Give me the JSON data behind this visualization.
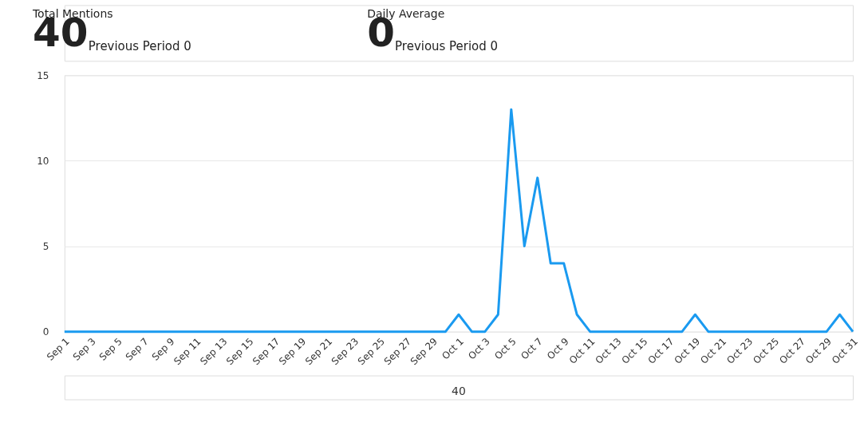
{
  "chart_data": {
    "type": "line",
    "annotations": [
      "Total Mentions",
      "40",
      "Previous Period 0",
      "Daily Average",
      "0",
      "Previous Period 0",
      "40"
    ],
    "categories": [
      "Sep 1",
      null,
      "Sep 3",
      null,
      "Sep 5",
      null,
      "Sep 7",
      null,
      "Sep 9",
      null,
      "Sep 11",
      null,
      "Sep 13",
      null,
      "Sep 15",
      null,
      "Sep 17",
      null,
      "Sep 19",
      null,
      "Sep 21",
      null,
      "Sep 23",
      null,
      "Sep 25",
      null,
      "Sep 27",
      null,
      "Sep 29",
      null,
      "Oct 1",
      null,
      "Oct 3",
      null,
      "Oct 5",
      null,
      "Oct 7",
      null,
      "Oct 9",
      null,
      "Oct 11",
      null,
      "Oct 13",
      null,
      "Oct 15",
      null,
      "Oct 17",
      null,
      "Oct 19",
      null,
      "Oct 21",
      null,
      "Oct 23",
      null,
      "Oct 25",
      null,
      "Oct 27",
      null,
      "Oct 29",
      null,
      "Oct 31"
    ],
    "series": [
      {
        "color": "#1a9af0",
        "values": [
          0,
          0,
          0,
          0,
          0,
          0,
          0,
          0,
          0,
          0,
          0,
          0,
          0,
          0,
          0,
          0,
          0,
          0,
          0,
          0,
          0,
          0,
          0,
          0,
          0,
          0,
          0,
          0,
          0,
          0,
          1,
          0,
          0,
          1,
          13,
          5,
          9,
          4,
          4,
          1,
          0,
          0,
          0,
          0,
          0,
          0,
          0,
          0,
          1,
          0,
          0,
          0,
          0,
          0,
          0,
          0,
          0,
          0,
          0,
          1,
          0
        ]
      }
    ],
    "ylim": [
      0,
      15
    ],
    "yticks": [
      0,
      5,
      10,
      15
    ],
    "grid": "y",
    "legend": false,
    "marker": "none",
    "line_style": "solid"
  }
}
